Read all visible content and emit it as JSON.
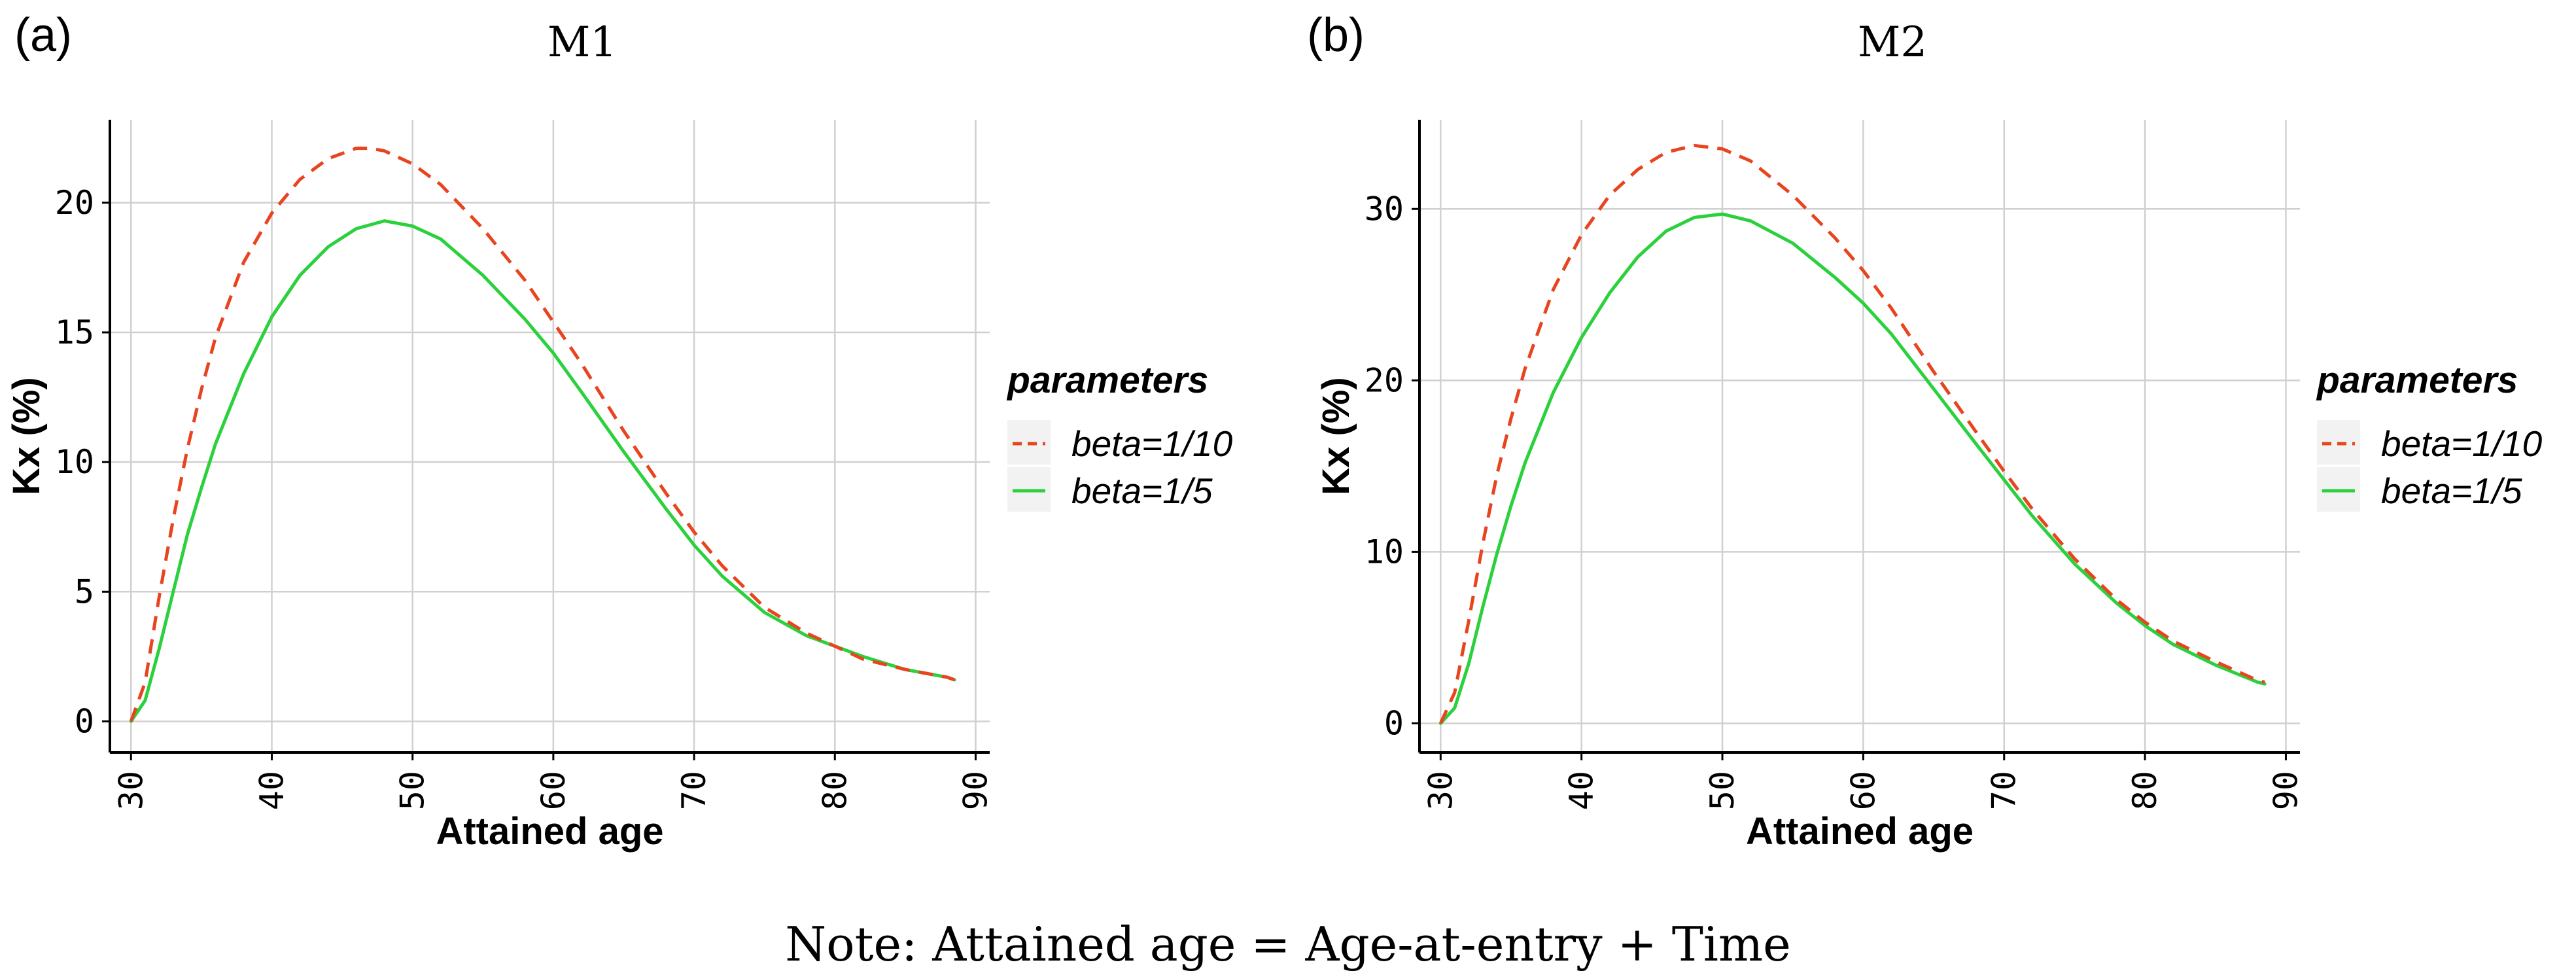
{
  "note": "Note:  Attained age = Age-at-entry + Time",
  "chart_data": [
    {
      "panel_label": "(a)",
      "title": "M1",
      "type": "line",
      "xlabel": "Attained age",
      "ylabel": "Kx (%)",
      "xlim": [
        28.5,
        91
      ],
      "ylim": [
        -1.2,
        23.2
      ],
      "xticks": [
        30,
        40,
        50,
        60,
        70,
        80,
        90
      ],
      "yticks": [
        0,
        5,
        10,
        15,
        20
      ],
      "grid": true,
      "legend": {
        "title": "parameters",
        "placement": "right"
      },
      "series": [
        {
          "name": "beta=1/10",
          "color": "#e8441f",
          "dash": "dashed",
          "x": [
            30,
            31,
            32,
            33,
            34,
            35,
            36,
            38,
            40,
            42,
            44,
            46,
            47,
            48,
            50,
            52,
            55,
            58,
            60,
            62,
            65,
            68,
            70,
            72,
            75,
            78,
            80,
            82,
            85,
            88,
            88.5
          ],
          "y": [
            0,
            1.5,
            4.8,
            7.8,
            10.5,
            12.8,
            14.8,
            17.7,
            19.6,
            20.9,
            21.7,
            22.1,
            22.1,
            22.0,
            21.5,
            20.7,
            19.0,
            17.0,
            15.4,
            13.8,
            11.2,
            8.8,
            7.3,
            6.0,
            4.4,
            3.4,
            2.9,
            2.4,
            2.0,
            1.7,
            1.6
          ]
        },
        {
          "name": "beta=1/5",
          "color": "#2bd13c",
          "dash": "solid",
          "x": [
            30,
            31,
            32,
            33,
            34,
            35,
            36,
            38,
            40,
            42,
            44,
            46,
            48,
            50,
            52,
            55,
            58,
            60,
            62,
            65,
            68,
            70,
            72,
            75,
            78,
            80,
            82,
            85,
            88,
            88.5
          ],
          "y": [
            0,
            0.8,
            2.8,
            5.0,
            7.2,
            9.0,
            10.7,
            13.4,
            15.6,
            17.2,
            18.3,
            19.0,
            19.3,
            19.1,
            18.6,
            17.2,
            15.5,
            14.2,
            12.7,
            10.4,
            8.2,
            6.8,
            5.6,
            4.2,
            3.3,
            2.9,
            2.5,
            2.0,
            1.7,
            1.6
          ]
        }
      ]
    },
    {
      "panel_label": "(b)",
      "title": "M2",
      "type": "line",
      "xlabel": "Attained age",
      "ylabel": "Kx (%)",
      "xlim": [
        28.5,
        91
      ],
      "ylim": [
        -1.7,
        35.2
      ],
      "xticks": [
        30,
        40,
        50,
        60,
        70,
        80,
        90
      ],
      "yticks": [
        0,
        10,
        20,
        30
      ],
      "grid": true,
      "legend": {
        "title": "parameters",
        "placement": "right"
      },
      "series": [
        {
          "name": "beta=1/10",
          "color": "#e8441f",
          "dash": "dashed",
          "x": [
            30,
            31,
            32,
            33,
            34,
            35,
            36,
            38,
            40,
            42,
            44,
            46,
            48,
            50,
            52,
            55,
            58,
            60,
            62,
            65,
            68,
            70,
            72,
            75,
            78,
            80,
            82,
            85,
            88,
            88.5
          ],
          "y": [
            0,
            1.8,
            6.0,
            10.5,
            14.5,
            17.8,
            20.7,
            25.3,
            28.5,
            30.8,
            32.3,
            33.3,
            33.7,
            33.5,
            32.8,
            30.8,
            28.3,
            26.4,
            24.2,
            20.5,
            17.0,
            14.7,
            12.5,
            9.6,
            7.2,
            5.9,
            4.8,
            3.6,
            2.5,
            2.4
          ]
        },
        {
          "name": "beta=1/5",
          "color": "#2bd13c",
          "dash": "solid",
          "x": [
            30,
            31,
            32,
            33,
            34,
            35,
            36,
            38,
            40,
            42,
            44,
            46,
            48,
            50,
            52,
            55,
            58,
            60,
            62,
            65,
            68,
            70,
            72,
            75,
            78,
            80,
            82,
            85,
            88,
            88.5
          ],
          "y": [
            0,
            0.9,
            3.5,
            6.8,
            9.9,
            12.7,
            15.2,
            19.3,
            22.5,
            25.1,
            27.2,
            28.7,
            29.5,
            29.7,
            29.3,
            28.0,
            26.0,
            24.5,
            22.7,
            19.5,
            16.3,
            14.2,
            12.1,
            9.3,
            7.0,
            5.7,
            4.6,
            3.4,
            2.4,
            2.3
          ]
        }
      ]
    }
  ]
}
